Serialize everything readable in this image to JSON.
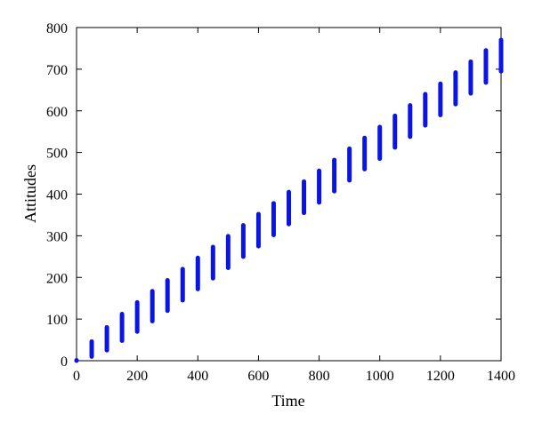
{
  "chart_data": {
    "type": "line",
    "title": "",
    "xlabel": "Time",
    "ylabel": "Attitudes",
    "xlim": [
      0,
      1400
    ],
    "ylim": [
      0,
      800
    ],
    "xticks": [
      0,
      200,
      400,
      600,
      800,
      1000,
      1200,
      1400
    ],
    "yticks": [
      0,
      100,
      200,
      300,
      400,
      500,
      600,
      700,
      800
    ],
    "grid": false,
    "legend": "none",
    "series_color": "#0a14e6",
    "segments": [
      {
        "x": 0,
        "y_min": 0,
        "y_max": 0
      },
      {
        "x": 50,
        "y_min": 10,
        "y_max": 46
      },
      {
        "x": 100,
        "y_min": 25,
        "y_max": 80
      },
      {
        "x": 150,
        "y_min": 48,
        "y_max": 112
      },
      {
        "x": 200,
        "y_min": 70,
        "y_max": 140
      },
      {
        "x": 250,
        "y_min": 95,
        "y_max": 167
      },
      {
        "x": 300,
        "y_min": 120,
        "y_max": 193
      },
      {
        "x": 350,
        "y_min": 145,
        "y_max": 220
      },
      {
        "x": 400,
        "y_min": 172,
        "y_max": 247
      },
      {
        "x": 450,
        "y_min": 198,
        "y_max": 273
      },
      {
        "x": 500,
        "y_min": 223,
        "y_max": 299
      },
      {
        "x": 550,
        "y_min": 250,
        "y_max": 325
      },
      {
        "x": 600,
        "y_min": 275,
        "y_max": 352
      },
      {
        "x": 650,
        "y_min": 302,
        "y_max": 378
      },
      {
        "x": 700,
        "y_min": 328,
        "y_max": 405
      },
      {
        "x": 750,
        "y_min": 355,
        "y_max": 430
      },
      {
        "x": 800,
        "y_min": 380,
        "y_max": 456
      },
      {
        "x": 850,
        "y_min": 407,
        "y_max": 482
      },
      {
        "x": 900,
        "y_min": 433,
        "y_max": 509
      },
      {
        "x": 950,
        "y_min": 460,
        "y_max": 535
      },
      {
        "x": 1000,
        "y_min": 485,
        "y_max": 561
      },
      {
        "x": 1050,
        "y_min": 512,
        "y_max": 588
      },
      {
        "x": 1100,
        "y_min": 538,
        "y_max": 613
      },
      {
        "x": 1150,
        "y_min": 565,
        "y_max": 640
      },
      {
        "x": 1200,
        "y_min": 590,
        "y_max": 665
      },
      {
        "x": 1250,
        "y_min": 616,
        "y_max": 692
      },
      {
        "x": 1300,
        "y_min": 642,
        "y_max": 718
      },
      {
        "x": 1350,
        "y_min": 668,
        "y_max": 745
      },
      {
        "x": 1400,
        "y_min": 695,
        "y_max": 770
      }
    ]
  }
}
